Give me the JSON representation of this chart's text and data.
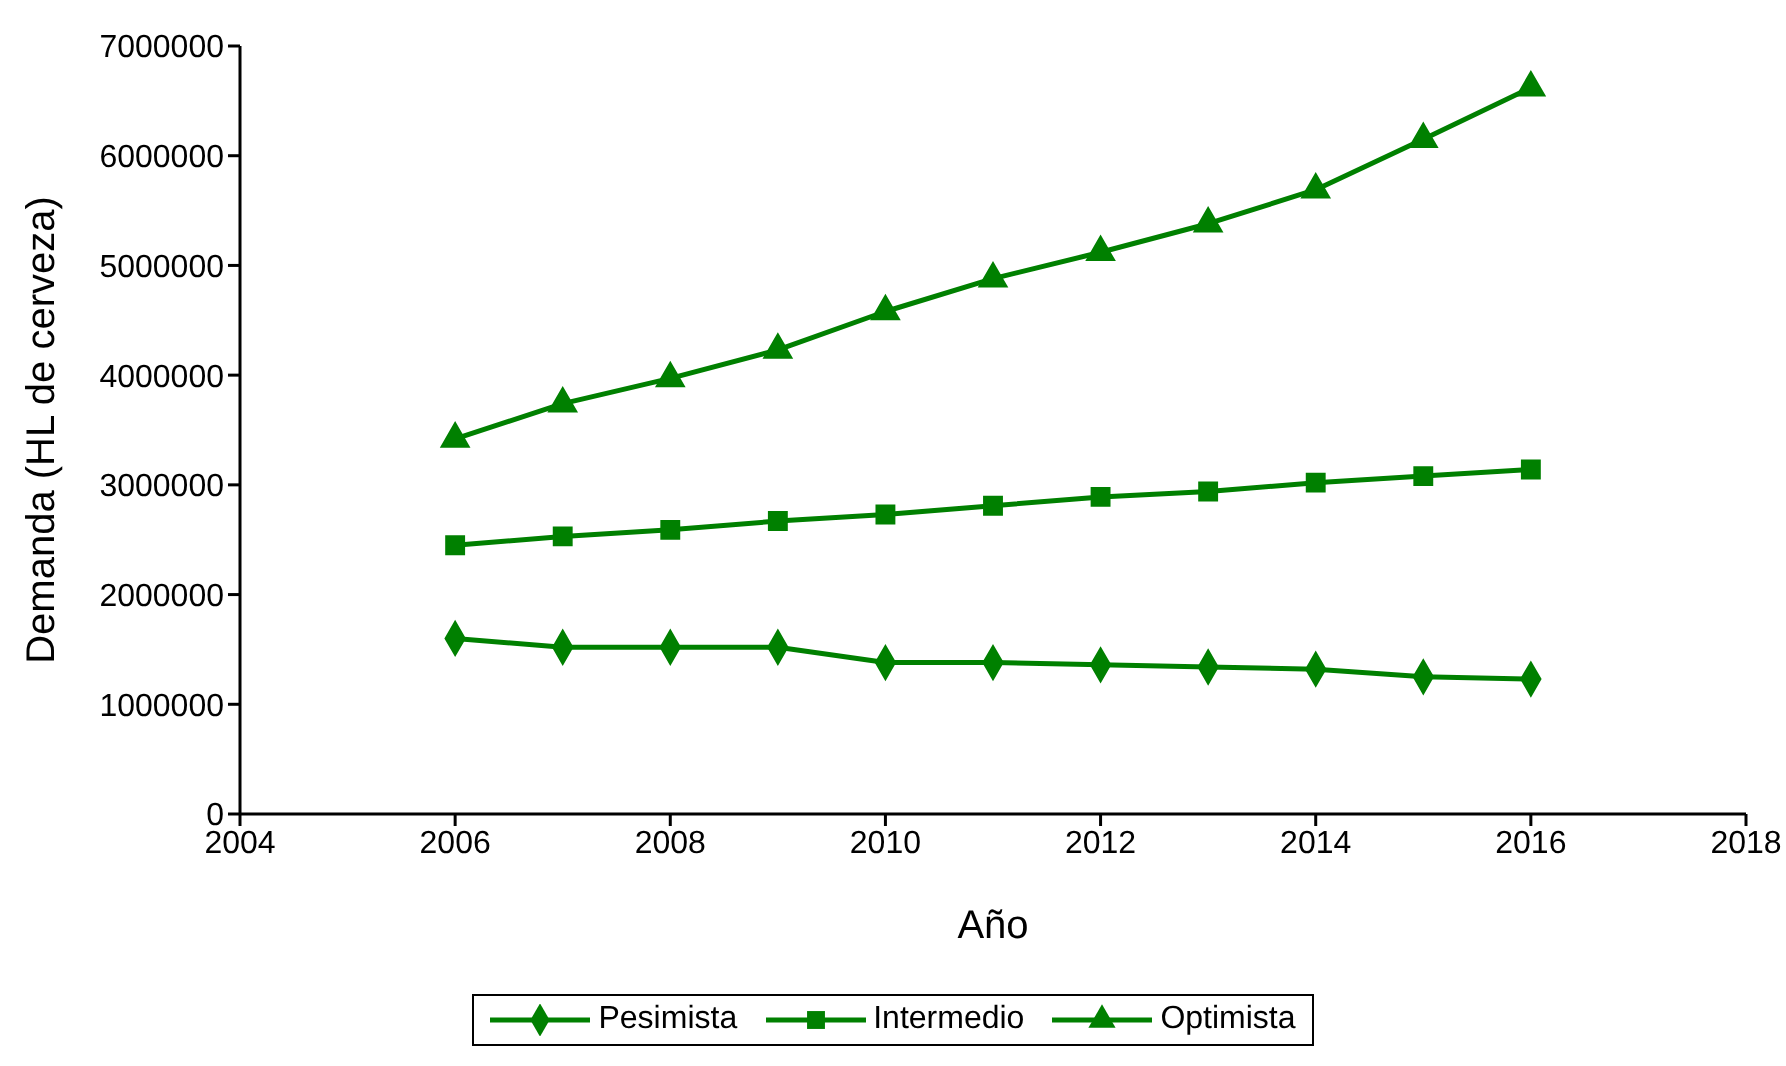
{
  "chart_data": {
    "type": "line",
    "xlabel": "Año",
    "ylabel": "Demanda (HL de cerveza)",
    "x": [
      2006,
      2007,
      2008,
      2009,
      2010,
      2011,
      2012,
      2013,
      2014,
      2015,
      2016
    ],
    "series": [
      {
        "name": "Pesimista",
        "color": "#008000",
        "marker": "diamond",
        "values": [
          1600000,
          1520000,
          1520000,
          1520000,
          1380000,
          1380000,
          1360000,
          1340000,
          1320000,
          1250000,
          1230000
        ]
      },
      {
        "name": "Intermedio",
        "color": "#008000",
        "marker": "square",
        "values": [
          2450000,
          2530000,
          2590000,
          2670000,
          2730000,
          2810000,
          2890000,
          2940000,
          3020000,
          3080000,
          3140000
        ]
      },
      {
        "name": "Optimista",
        "color": "#008000",
        "marker": "triangle",
        "values": [
          3420000,
          3740000,
          3970000,
          4230000,
          4580000,
          4880000,
          5120000,
          5380000,
          5690000,
          6150000,
          6620000
        ]
      }
    ],
    "xlim": [
      2004,
      2018
    ],
    "xticks": [
      2004,
      2006,
      2008,
      2010,
      2012,
      2014,
      2016,
      2018
    ],
    "ylim": [
      0,
      7000000
    ],
    "yticks": [
      0,
      1000000,
      2000000,
      3000000,
      4000000,
      5000000,
      6000000,
      7000000
    ],
    "grid": false,
    "legend": "bottom",
    "line_style": "solid"
  }
}
